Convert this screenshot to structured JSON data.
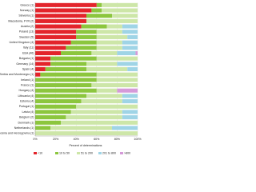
{
  "chart_data": {
    "type": "stacked-bar-horizontal",
    "x_label": "Percent of determinations",
    "categories": [
      "Greece (1)",
      "Norway (1)",
      "Slovenia (1)",
      "Macedonia, FYR (2)",
      "Austria (2)",
      "Poland (13)",
      "Sweden (5)",
      "United Kingdom (4)",
      "Italy (11)",
      "EEA (46)",
      "Bulgaria (1)",
      "Germany (14)",
      "Spain (4)",
      "Serbia and Montenegro (1)",
      "Ireland (1)",
      "France (1)",
      "Hungary (4)",
      "Lithuania (4)",
      "Estonia (4)",
      "Portugal (1)",
      "Latvia (4)",
      "Belgium (2)",
      "Denmark (1)",
      "Netherlands (1)",
      "Bosnia and Herzegovina (1)"
    ],
    "series": [
      {
        "name": "<10",
        "color": "#e3242b",
        "values": [
          60,
          55,
          50,
          50,
          45,
          40,
          40,
          35,
          30,
          25,
          15,
          15,
          10,
          5,
          0,
          0,
          0,
          0,
          0,
          0,
          0,
          0,
          0,
          0,
          0
        ]
      },
      {
        "name": "10 to 50",
        "color": "#8cc63e",
        "values": [
          5,
          10,
          25,
          0,
          25,
          20,
          20,
          25,
          30,
          30,
          45,
          35,
          40,
          55,
          60,
          55,
          60,
          50,
          45,
          40,
          35,
          30,
          25,
          15,
          0
        ]
      },
      {
        "name": "51 to 200",
        "color": "#cde6a8",
        "values": [
          35,
          35,
          25,
          50,
          15,
          25,
          30,
          25,
          25,
          25,
          40,
          30,
          40,
          40,
          40,
          45,
          20,
          35,
          40,
          60,
          50,
          55,
          75,
          60,
          100
        ]
      },
      {
        "name": "201 to 800",
        "color": "#9fd4e6",
        "values": [
          0,
          0,
          0,
          0,
          15,
          15,
          10,
          15,
          15,
          18,
          0,
          20,
          10,
          0,
          0,
          0,
          0,
          15,
          15,
          0,
          15,
          15,
          0,
          25,
          0
        ]
      },
      {
        "name": ">800",
        "color": "#d59ad9",
        "values": [
          0,
          0,
          0,
          0,
          0,
          0,
          0,
          0,
          0,
          2,
          0,
          0,
          0,
          0,
          0,
          0,
          20,
          0,
          0,
          0,
          0,
          0,
          0,
          0,
          0
        ]
      }
    ],
    "xlim": [
      0,
      100
    ],
    "xticks": [
      {
        "value": 0,
        "label": "0%"
      },
      {
        "value": 20,
        "label": "20%"
      },
      {
        "value": 40,
        "label": "40%"
      },
      {
        "value": 60,
        "label": "60%"
      },
      {
        "value": 80,
        "label": "80%"
      },
      {
        "value": 100,
        "label": "100%"
      }
    ],
    "grid": true,
    "legend": "bottom"
  }
}
